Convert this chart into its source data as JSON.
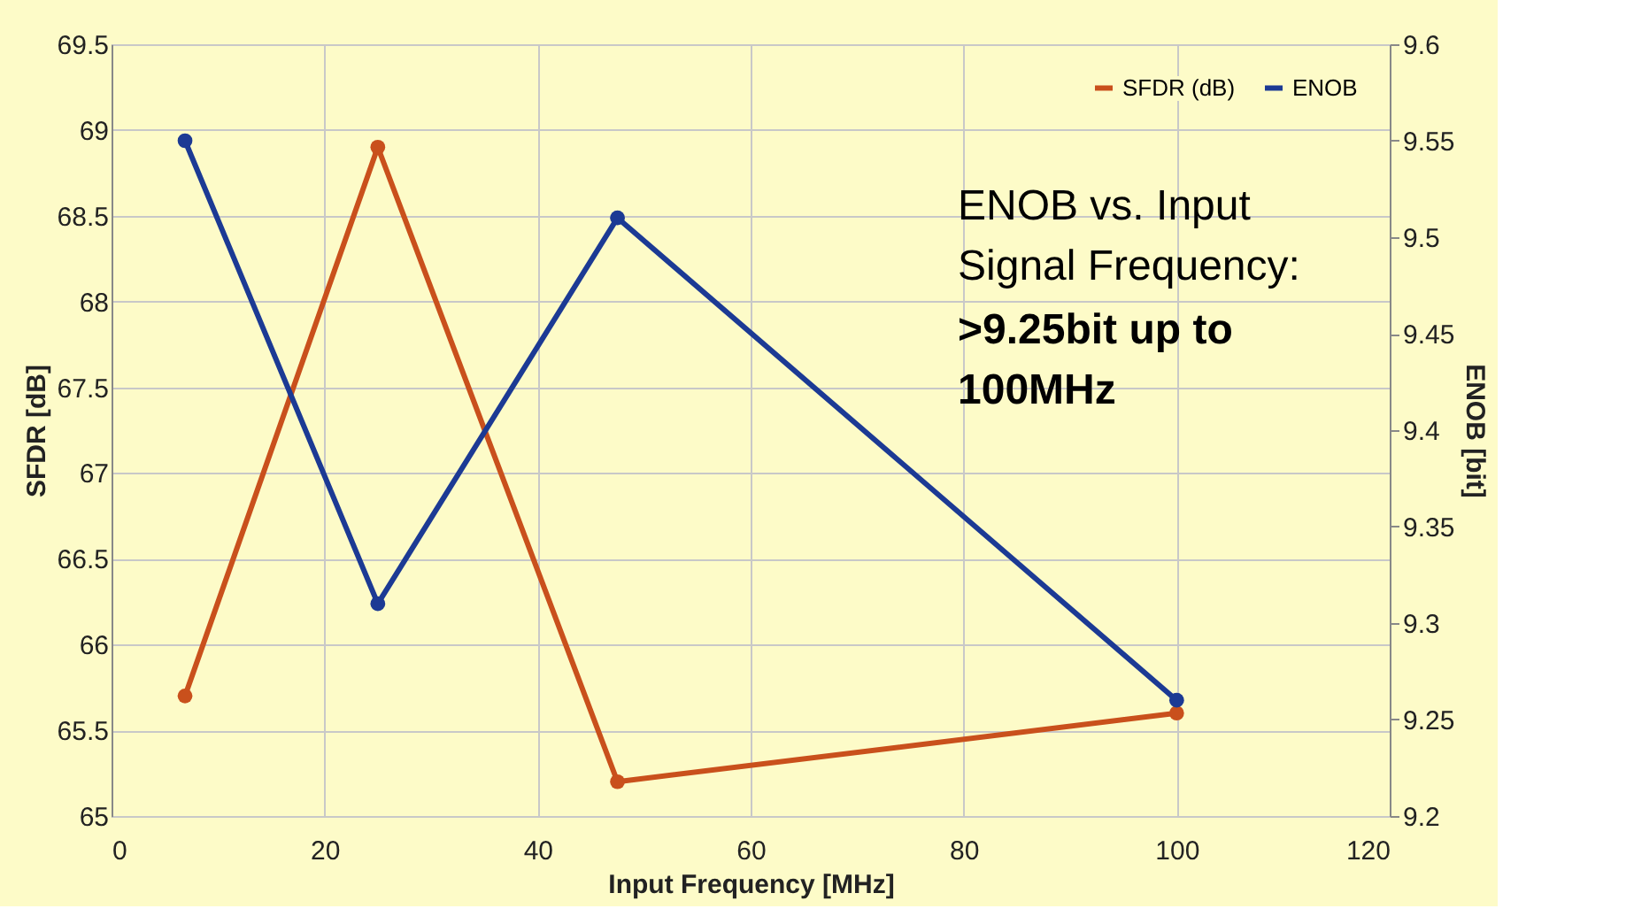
{
  "chart_data": {
    "type": "line",
    "xlabel": "Input Frequency [MHz]",
    "ylabel": "SFDR [dB]",
    "y2label": "ENOB [bit]",
    "x": [
      6.9,
      25,
      47.5,
      100
    ],
    "series": [
      {
        "name": "SFDR (dB)",
        "color": "#c9501c",
        "values": [
          65.7,
          68.9,
          65.2,
          65.6
        ]
      },
      {
        "name": "ENOB",
        "color": "#1c3a94",
        "axis": "y2",
        "values": [
          9.55,
          9.31,
          9.51,
          9.26
        ]
      }
    ],
    "xlim": [
      0,
      120
    ],
    "xticks": [
      0,
      20,
      40,
      60,
      80,
      100,
      120
    ],
    "ylim": [
      65,
      69.5
    ],
    "yticks": [
      65,
      65.5,
      66,
      66.5,
      67,
      67.5,
      68,
      68.5,
      69,
      69.5
    ],
    "y2lim": [
      9.2,
      9.6
    ],
    "y2ticks": [
      9.2,
      9.25,
      9.3,
      9.35,
      9.4,
      9.45,
      9.5,
      9.55,
      9.6
    ],
    "annotations": [
      "ENOB vs. Input Signal Frequency:",
      ">9.25bit up to 100MHz"
    ],
    "grid": true,
    "legend": "top right",
    "marker": "circle",
    "line_style": "solid"
  }
}
